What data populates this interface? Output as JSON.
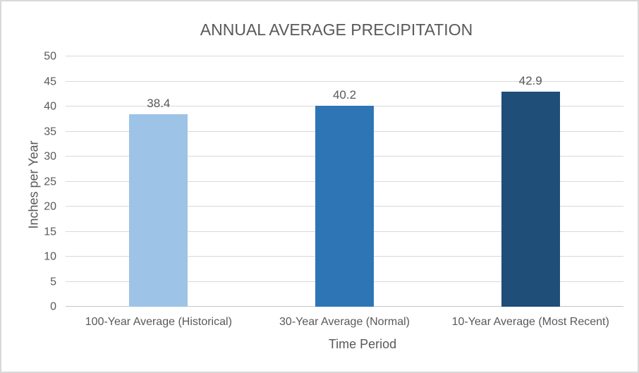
{
  "chart_data": {
    "type": "bar",
    "title": "ANNUAL AVERAGE PRECIPITATION",
    "xlabel": "Time Period",
    "ylabel": "Inches per Year",
    "categories": [
      "100-Year Average (Historical)",
      "30-Year Average (Normal)",
      "10-Year Average (Most Recent)"
    ],
    "values": [
      38.4,
      40.2,
      42.9
    ],
    "data_labels": [
      "38.4",
      "40.2",
      "42.9"
    ],
    "ylim": [
      0,
      50
    ],
    "ytick_step": 5,
    "yticks": [
      0,
      5,
      10,
      15,
      20,
      25,
      30,
      35,
      40,
      45,
      50
    ],
    "grid": true,
    "legend": "none",
    "bar_colors": [
      "#9DC3E6",
      "#2E75B6",
      "#1F4E79"
    ],
    "colors": {
      "text": "#595959",
      "gridline": "#D9D9D9",
      "axis_line": "#C6C6C6",
      "border": "#D9D9D9",
      "background": "#FFFFFF"
    }
  }
}
